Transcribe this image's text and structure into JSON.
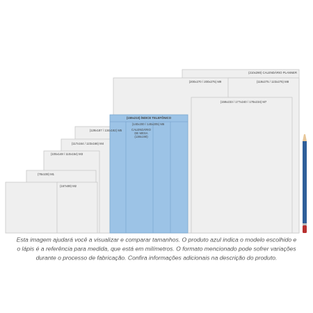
{
  "diagram": {
    "labels": {
      "planner": "(210x290) CALENDÁRIO PLANNER",
      "m9": "(200x270 / 200x275) M9",
      "m8": "(119x275 / 123x275) M8",
      "m7": "(159x233 / 177x240 / 178x234) M7",
      "indice": "(159x210) ÍNDICE TELEFÔNICO",
      "m6": "(140x200 / 145x205) M6",
      "mesa1": "CALENDÁRIO",
      "mesa2": "DE MESA",
      "mesa3": "(138x190)",
      "m5": "(129x187 / 134x192) M5",
      "m4": "(117x164 / 123x166) M4",
      "m3": "(105x148 / 110x154) M3",
      "m1": "(78x108) M1",
      "m2": "(167x89) M2"
    },
    "caption": [
      "Esta imagem ajudará você a visualizar e comparar tamanhos. O produto azul indica o modelo escolhido e",
      "o lápis é a referência para medida, que está em milímetros. O formato mencionado pode sofrer variações",
      "durante o processo de fabricação. Confira informações adicionais na descrição do produto."
    ]
  }
}
